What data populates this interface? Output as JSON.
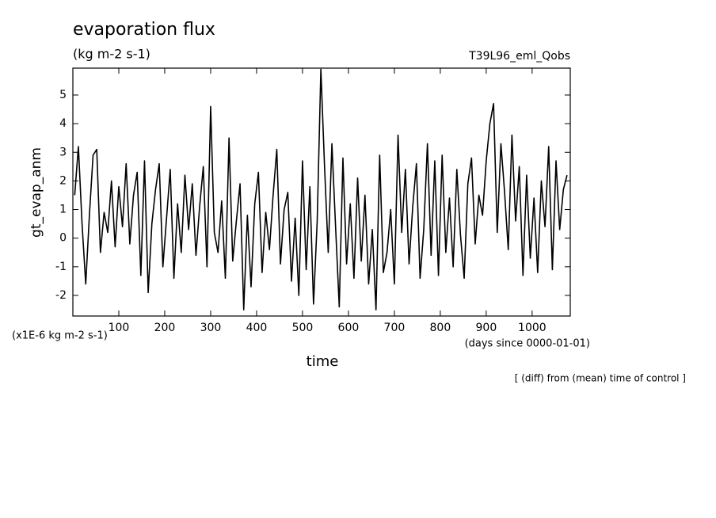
{
  "chart_data": {
    "type": "line",
    "title": "evaporation flux",
    "subtitle": "(kg m-2 s-1)",
    "run_label": "T39L96_eml_Qobs",
    "y_label": "gt_evap_anm",
    "y_units": "(x1E-6 kg m-2 s-1)",
    "x_label": "time",
    "x_units": "(days since 0000-01-01)",
    "note": "[ (diff) from (mean) time of control ]",
    "xlim": [
      0,
      1083
    ],
    "ylim": [
      -2.72,
      5.94
    ],
    "xticks": [
      100,
      200,
      300,
      400,
      500,
      600,
      700,
      800,
      900,
      1000
    ],
    "yticks": [
      -2,
      -1,
      0,
      1,
      2,
      3,
      4,
      5
    ],
    "x": [
      4,
      12,
      20,
      28,
      36,
      44,
      52,
      60,
      68,
      76,
      84,
      92,
      100,
      108,
      116,
      124,
      132,
      140,
      148,
      156,
      164,
      172,
      180,
      188,
      196,
      204,
      212,
      220,
      228,
      236,
      244,
      252,
      260,
      268,
      276,
      284,
      292,
      300,
      308,
      316,
      324,
      332,
      340,
      348,
      356,
      364,
      372,
      380,
      388,
      396,
      404,
      412,
      420,
      428,
      436,
      444,
      452,
      460,
      468,
      476,
      484,
      492,
      500,
      508,
      516,
      524,
      532,
      540,
      548,
      556,
      564,
      572,
      580,
      588,
      596,
      604,
      612,
      620,
      628,
      636,
      644,
      652,
      660,
      668,
      676,
      684,
      692,
      700,
      708,
      716,
      724,
      732,
      740,
      748,
      756,
      764,
      772,
      780,
      788,
      796,
      804,
      812,
      820,
      828,
      836,
      844,
      852,
      860,
      868,
      876,
      884,
      892,
      900,
      908,
      916,
      924,
      932,
      940,
      948,
      956,
      964,
      972,
      980,
      988,
      996,
      1004,
      1012,
      1020,
      1028,
      1036,
      1044,
      1052,
      1060,
      1068,
      1076
    ],
    "series": [
      {
        "color": "#000000",
        "values": [
          1.5,
          3.2,
          0.5,
          -1.6,
          0.8,
          2.9,
          3.1,
          -0.5,
          0.9,
          0.2,
          2.0,
          -0.3,
          1.8,
          0.4,
          2.6,
          -0.2,
          1.5,
          2.3,
          -1.3,
          2.7,
          -1.9,
          0.5,
          1.7,
          2.6,
          -1.0,
          0.7,
          2.4,
          -1.4,
          1.2,
          -0.5,
          2.2,
          0.3,
          1.9,
          -0.6,
          1.1,
          2.5,
          -1.0,
          4.6,
          0.2,
          -0.5,
          1.3,
          -1.4,
          3.5,
          -0.8,
          0.6,
          1.9,
          -2.5,
          0.8,
          -1.7,
          1.2,
          2.3,
          -1.2,
          0.9,
          -0.4,
          1.5,
          3.1,
          -0.9,
          1.0,
          1.6,
          -1.5,
          0.7,
          -2.0,
          2.7,
          -1.1,
          1.8,
          -2.3,
          0.6,
          5.9,
          2.5,
          -0.5,
          3.3,
          0.4,
          -2.4,
          2.8,
          -0.9,
          1.2,
          -1.4,
          2.1,
          -0.8,
          1.5,
          -1.6,
          0.3,
          -2.5,
          2.9,
          -1.2,
          -0.5,
          1.0,
          -1.6,
          3.6,
          0.2,
          2.4,
          -0.9,
          1.1,
          2.6,
          -1.4,
          0.3,
          3.3,
          -0.6,
          2.7,
          -1.3,
          2.9,
          -0.5,
          1.4,
          -1.0,
          2.4,
          0.1,
          -1.4,
          1.9,
          2.8,
          -0.2,
          1.5,
          0.8,
          2.7,
          4.0,
          4.7,
          0.2,
          3.3,
          1.6,
          -0.4,
          3.6,
          0.6,
          2.5,
          -1.3,
          2.2,
          -0.7,
          1.4,
          -1.2,
          2.0,
          0.4,
          3.2,
          -1.1,
          2.7,
          0.3,
          1.7,
          2.2
        ]
      }
    ]
  }
}
